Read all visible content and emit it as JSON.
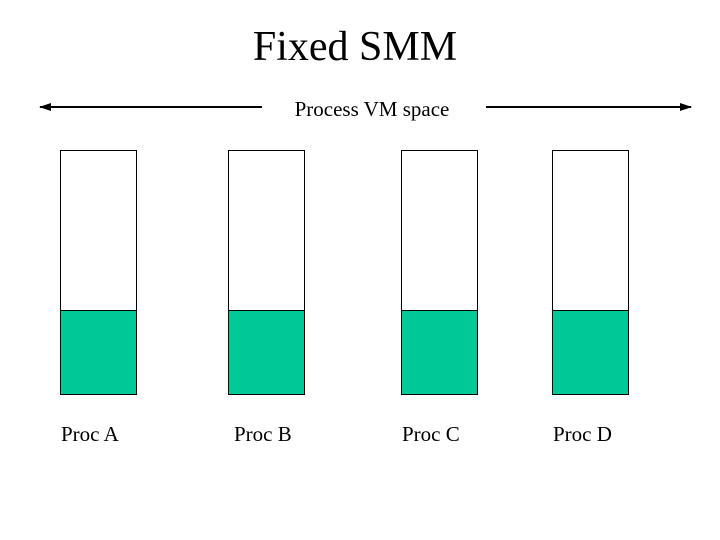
{
  "title": "Fixed SMM",
  "span_label": "Process VM space",
  "shared_fraction": 0.34,
  "colors": {
    "shared": "#00c896",
    "box": "#ffffff",
    "line": "#000000"
  },
  "processes": [
    {
      "label": "Proc A"
    },
    {
      "label": "Proc B"
    },
    {
      "label": "Proc C"
    },
    {
      "label": "Proc D"
    }
  ]
}
